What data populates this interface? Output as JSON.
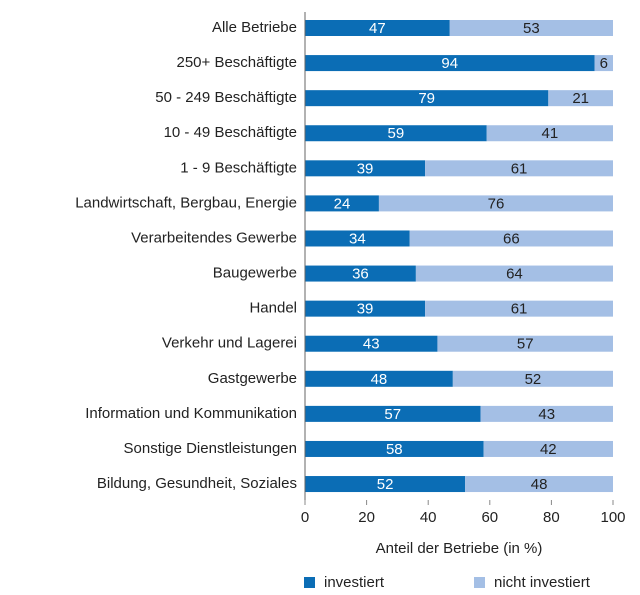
{
  "chart_data": {
    "type": "stacked-bar-horizontal",
    "categories": [
      "Alle Betriebe",
      "250+ Beschäftigte",
      "50 - 249 Beschäftigte",
      "10 - 49 Beschäftigte",
      "1 - 9 Beschäftigte",
      "Landwirtschaft, Bergbau, Energie",
      "Verarbeitendes Gewerbe",
      "Baugewerbe",
      "Handel",
      "Verkehr und Lagerei",
      "Gastgewerbe",
      "Information und Kommunikation",
      "Sonstige Dienstleistungen",
      "Bildung, Gesundheit, Soziales"
    ],
    "series": [
      {
        "name": "investiert",
        "color": "#0b6db5",
        "label_color": "#ffffff",
        "values": [
          47,
          94,
          79,
          59,
          39,
          24,
          34,
          36,
          39,
          43,
          48,
          57,
          58,
          52
        ]
      },
      {
        "name": "nicht investiert",
        "color": "#a4bfe5",
        "label_color": "#222222",
        "values": [
          53,
          6,
          21,
          41,
          61,
          76,
          66,
          64,
          61,
          57,
          52,
          43,
          42,
          48
        ]
      }
    ],
    "xlabel": "Anteil der Betriebe (in %)",
    "xlim": [
      0,
      100
    ],
    "xticks": [
      0,
      20,
      40,
      60,
      80,
      100
    ],
    "legend": "bottom"
  }
}
